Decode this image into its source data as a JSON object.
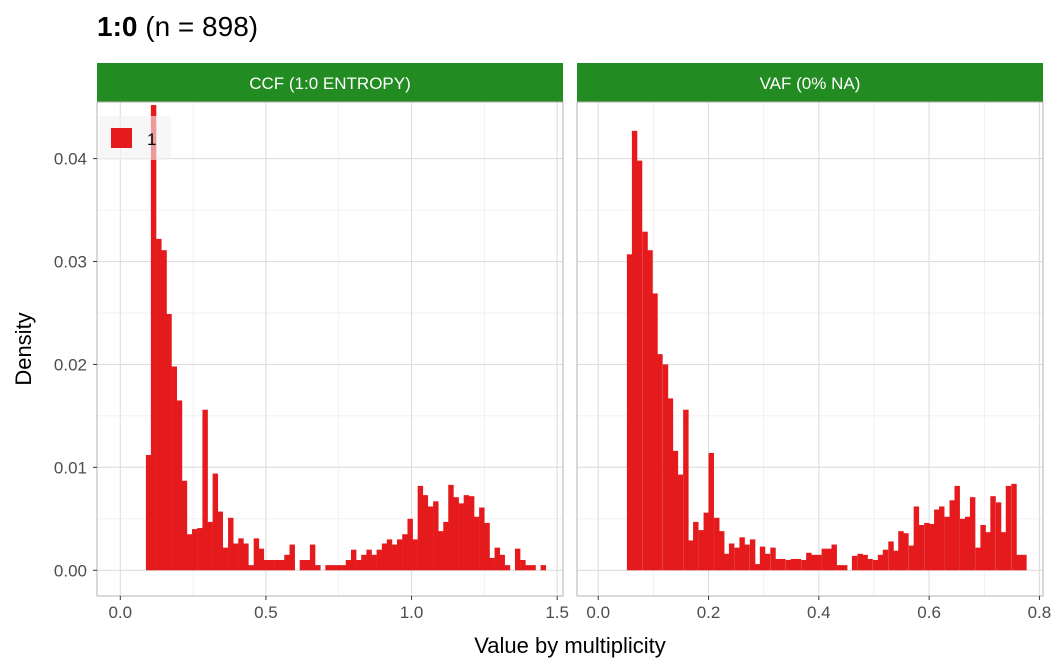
{
  "chart_data": {
    "type": "bar",
    "title": {
      "bold": "1:0",
      "rest": " (n = 898)"
    },
    "xlabel": "Value by multiplicity",
    "ylabel": "Density",
    "ylim": [
      -0.0025,
      0.0455
    ],
    "yticks": [
      0.0,
      0.01,
      0.02,
      0.03,
      0.04
    ],
    "ytick_labels": [
      "0.00",
      "0.01",
      "0.02",
      "0.03",
      "0.04"
    ],
    "grid": true,
    "legend": {
      "position": "top-left",
      "entries": [
        {
          "label": "1",
          "color": "#e41a1c"
        }
      ]
    },
    "colors": {
      "bar": "#e41a1c",
      "strip": "#228b22",
      "grid": "#ebebeb",
      "border": "#b3b3b3"
    },
    "panels": [
      {
        "strip": "CCF (1:0 ENTROPY)",
        "xlim": [
          -0.08,
          1.52
        ],
        "xticks": [
          0.0,
          0.5,
          1.0,
          1.5
        ],
        "xtick_labels": [
          "0.0",
          "0.5",
          "1.0",
          "1.5"
        ],
        "bin_width": 0.0176,
        "bin_starts": [
          0.088,
          0.105,
          0.123,
          0.141,
          0.158,
          0.176,
          0.194,
          0.211,
          0.229,
          0.246,
          0.264,
          0.282,
          0.299,
          0.317,
          0.334,
          0.352,
          0.37,
          0.387,
          0.405,
          0.422,
          0.44,
          0.458,
          0.475,
          0.493,
          0.51,
          0.528,
          0.546,
          0.563,
          0.581,
          0.598,
          0.616,
          0.634,
          0.651,
          0.669,
          0.686,
          0.704,
          0.722,
          0.739,
          0.757,
          0.774,
          0.792,
          0.81,
          0.827,
          0.845,
          0.862,
          0.88,
          0.898,
          0.915,
          0.933,
          0.95,
          0.968,
          0.986,
          1.003,
          1.021,
          1.038,
          1.056,
          1.074,
          1.091,
          1.109,
          1.126,
          1.144,
          1.162,
          1.179,
          1.197,
          1.214,
          1.232,
          1.25,
          1.267,
          1.285,
          1.302,
          1.32,
          1.338,
          1.355,
          1.373,
          1.39,
          1.408,
          1.426,
          1.443
        ],
        "values": [
          0.0112,
          0.0452,
          0.0322,
          0.0311,
          0.0249,
          0.0198,
          0.0165,
          0.0087,
          0.0035,
          0.004,
          0.0041,
          0.0156,
          0.0047,
          0.0094,
          0.0057,
          0.0022,
          0.0051,
          0.0026,
          0.0031,
          0.0026,
          0.0005,
          0.0031,
          0.0021,
          0.001,
          0.001,
          0.001,
          0.001,
          0.0015,
          0.0025,
          0.0,
          0.001,
          0.001,
          0.0025,
          0.0005,
          0.0,
          0.0005,
          0.0005,
          0.0005,
          0.0005,
          0.001,
          0.002,
          0.001,
          0.0015,
          0.002,
          0.0015,
          0.002,
          0.0026,
          0.003,
          0.0025,
          0.003,
          0.0035,
          0.005,
          0.003,
          0.0082,
          0.0073,
          0.0062,
          0.0067,
          0.0038,
          0.0047,
          0.0083,
          0.0071,
          0.0065,
          0.0073,
          0.0072,
          0.0052,
          0.0061,
          0.0046,
          0.0012,
          0.0022,
          0.0015,
          0.0005,
          0.0,
          0.0021,
          0.001,
          0.0005,
          0.0005,
          0.0,
          0.0005
        ]
      },
      {
        "strip": "VAF (0% NA)",
        "xlim": [
          -0.0385,
          0.8065
        ],
        "xticks": [
          0.0,
          0.2,
          0.4,
          0.6,
          0.8
        ],
        "xtick_labels": [
          "0.0",
          "0.2",
          "0.4",
          "0.6",
          "0.8"
        ],
        "bin_width": 0.0093,
        "bin_starts": [
          0.052,
          0.061,
          0.07,
          0.08,
          0.089,
          0.098,
          0.107,
          0.117,
          0.126,
          0.135,
          0.144,
          0.154,
          0.163,
          0.172,
          0.182,
          0.191,
          0.2,
          0.21,
          0.219,
          0.228,
          0.237,
          0.247,
          0.256,
          0.265,
          0.275,
          0.284,
          0.293,
          0.302,
          0.312,
          0.321,
          0.33,
          0.34,
          0.349,
          0.358,
          0.368,
          0.377,
          0.386,
          0.395,
          0.405,
          0.414,
          0.423,
          0.433,
          0.442,
          0.451,
          0.46,
          0.47,
          0.479,
          0.488,
          0.498,
          0.507,
          0.516,
          0.526,
          0.535,
          0.544,
          0.553,
          0.563,
          0.572,
          0.581,
          0.591,
          0.6,
          0.609,
          0.618,
          0.628,
          0.637,
          0.646,
          0.656,
          0.665,
          0.674,
          0.684,
          0.693,
          0.702,
          0.711,
          0.721,
          0.73,
          0.739,
          0.749,
          0.758,
          0.767
        ],
        "values": [
          0.0307,
          0.0427,
          0.0398,
          0.0329,
          0.0311,
          0.0269,
          0.021,
          0.02,
          0.0167,
          0.0116,
          0.0093,
          0.0156,
          0.0029,
          0.0047,
          0.0039,
          0.0056,
          0.0114,
          0.0051,
          0.0038,
          0.0016,
          0.0026,
          0.0022,
          0.0032,
          0.0025,
          0.003,
          0.0006,
          0.0023,
          0.0016,
          0.0022,
          0.0011,
          0.0011,
          0.001,
          0.0011,
          0.0011,
          0.001,
          0.0017,
          0.0015,
          0.0015,
          0.0021,
          0.0021,
          0.0025,
          0.0005,
          0.0005,
          0.0,
          0.0014,
          0.0016,
          0.0015,
          0.0011,
          0.001,
          0.0015,
          0.002,
          0.0028,
          0.0019,
          0.0038,
          0.0036,
          0.0024,
          0.0062,
          0.0044,
          0.0046,
          0.0045,
          0.0059,
          0.0062,
          0.0052,
          0.0068,
          0.0082,
          0.005,
          0.0052,
          0.0071,
          0.0022,
          0.0044,
          0.0037,
          0.0072,
          0.0066,
          0.0037,
          0.0082,
          0.0084,
          0.0015,
          0.0015
        ]
      }
    ]
  }
}
